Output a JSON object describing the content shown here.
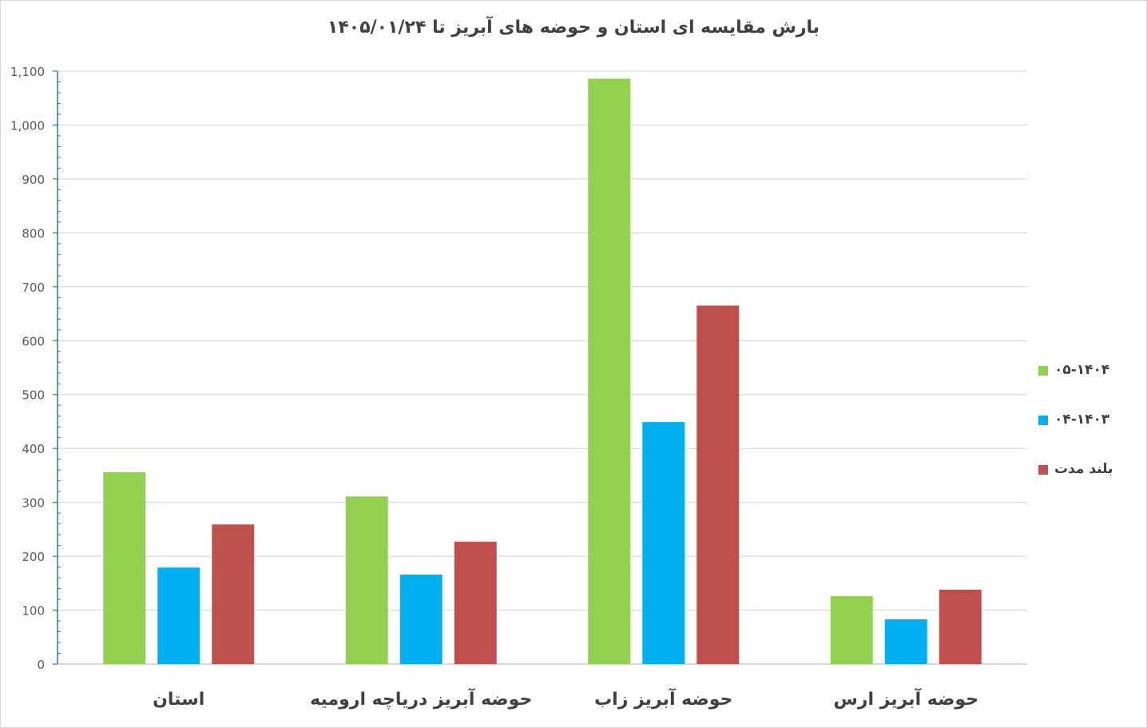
{
  "chart_data": {
    "type": "bar",
    "title": "بارش مقایسه ای استان و حوضه های آبریز تا ۱۴۰۵/۰۱/۲۴",
    "categories": [
      "استان",
      "حوضه آبریز دریاچه ارومیه",
      "حوضه آبریز زاب",
      "حوضه آبریز ارس"
    ],
    "series": [
      {
        "name": "۰۵-۱۴۰۴",
        "color": "#92d050",
        "values": [
          356,
          311,
          1086,
          126
        ]
      },
      {
        "name": "۰۴-۱۴۰۳",
        "color": "#00b0f0",
        "values": [
          179,
          166,
          449,
          83
        ]
      },
      {
        "name": "بلند مدت",
        "color": "#c0504d",
        "values": [
          259,
          227,
          665,
          138
        ]
      }
    ],
    "ylim": [
      0,
      1100
    ],
    "yticks": [
      0,
      100,
      200,
      300,
      400,
      500,
      600,
      700,
      800,
      900,
      1000,
      1100
    ],
    "ytick_labels": [
      "0",
      "100",
      "200",
      "300",
      "400",
      "500",
      "600",
      "700",
      "800",
      "900",
      "1,000",
      "1,100"
    ],
    "grid": true,
    "legend_position": "right"
  }
}
